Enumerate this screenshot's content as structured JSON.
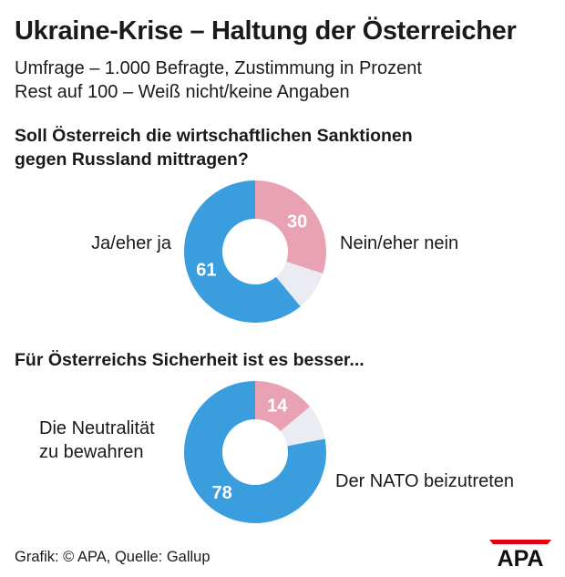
{
  "header": {
    "title": "Ukraine-Krise – Haltung der Österreicher",
    "subtitle_line1": "Umfrage – 1.000 Befragte, Zustimmung in Prozent",
    "subtitle_line2": "Rest auf 100 – Weiß nicht/keine Angaben"
  },
  "questions": [
    {
      "line1": "Soll Österreich die wirtschaftlichen Sanktionen",
      "line2": "gegen Russland mittragen?"
    },
    {
      "line1": "Für Österreichs Sicherheit ist es besser..."
    }
  ],
  "chart_data": [
    {
      "type": "pie",
      "variant": "donut",
      "title": "Soll Österreich die wirtschaftlichen Sanktionen gegen Russland mittragen?",
      "unit": "%",
      "slices": [
        {
          "label": "Ja/eher ja",
          "value": 61,
          "color": "#3a9ede"
        },
        {
          "label": "Nein/eher nein",
          "value": 30,
          "color": "#e8a2b3"
        },
        {
          "label": "Weiß nicht/keine Angaben",
          "value": 9,
          "color": "#ebebf3"
        }
      ]
    },
    {
      "type": "pie",
      "variant": "donut",
      "title": "Für Österreichs Sicherheit ist es besser...",
      "unit": "%",
      "slices": [
        {
          "label_line1": "Die Neutralität",
          "label_line2": "zu bewahren",
          "value": 78,
          "color": "#3a9ede"
        },
        {
          "label": "Der NATO beizutreten",
          "value": 14,
          "color": "#e8a2b3"
        },
        {
          "label": "Weiß nicht/keine Angaben",
          "value": 8,
          "color": "#ebebf3"
        }
      ]
    }
  ],
  "footer": {
    "credit": "Grafik: © APA, Quelle: Gallup",
    "logo_text": "APA",
    "logo_color": "#e3000f"
  }
}
